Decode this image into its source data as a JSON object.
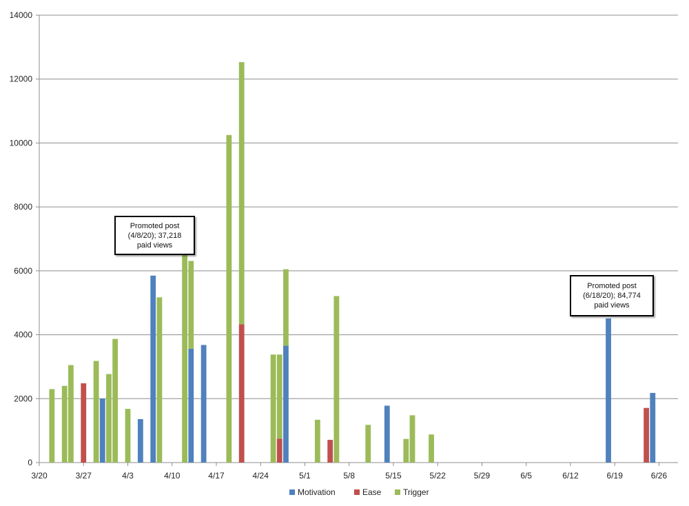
{
  "chart_data": {
    "type": "bar",
    "stacking": "stacked",
    "ylim": [
      0,
      14000
    ],
    "yticks": [
      0,
      2000,
      4000,
      6000,
      8000,
      10000,
      12000,
      14000
    ],
    "x_range": [
      "3/20",
      "6/29"
    ],
    "x_ticks": [
      "3/20",
      "3/27",
      "4/3",
      "4/10",
      "4/17",
      "4/24",
      "5/1",
      "5/8",
      "5/15",
      "5/22",
      "5/29",
      "6/5",
      "6/12",
      "6/19",
      "6/26"
    ],
    "grid": "horizontal",
    "legend_position": "bottom",
    "series": [
      {
        "name": "Motivation",
        "color": "#4F81BD"
      },
      {
        "name": "Ease",
        "color": "#C0504D"
      },
      {
        "name": "Trigger",
        "color": "#9BBB59"
      }
    ],
    "points": [
      {
        "date": "3/22",
        "motivation": 0,
        "ease": 0,
        "trigger": 2300
      },
      {
        "date": "3/24",
        "motivation": 0,
        "ease": 0,
        "trigger": 2400
      },
      {
        "date": "3/25",
        "motivation": 0,
        "ease": 0,
        "trigger": 3050
      },
      {
        "date": "3/27",
        "motivation": 0,
        "ease": 2480,
        "trigger": 0
      },
      {
        "date": "3/29",
        "motivation": 0,
        "ease": 0,
        "trigger": 3180
      },
      {
        "date": "3/30",
        "motivation": 2000,
        "ease": 0,
        "trigger": 0
      },
      {
        "date": "3/31",
        "motivation": 0,
        "ease": 0,
        "trigger": 2770
      },
      {
        "date": "4/1",
        "motivation": 0,
        "ease": 0,
        "trigger": 3870
      },
      {
        "date": "4/3",
        "motivation": 0,
        "ease": 0,
        "trigger": 1680
      },
      {
        "date": "4/5",
        "motivation": 1360,
        "ease": 0,
        "trigger": 0
      },
      {
        "date": "4/7",
        "motivation": 5850,
        "ease": 0,
        "trigger": 0
      },
      {
        "date": "4/8",
        "motivation": 0,
        "ease": 0,
        "trigger": 5170
      },
      {
        "date": "4/12",
        "motivation": 0,
        "ease": 0,
        "trigger": 6570
      },
      {
        "date": "4/13",
        "motivation": 3560,
        "ease": 0,
        "trigger": 2750
      },
      {
        "date": "4/15",
        "motivation": 3680,
        "ease": 0,
        "trigger": 0
      },
      {
        "date": "4/19",
        "motivation": 0,
        "ease": 0,
        "trigger": 10250
      },
      {
        "date": "4/21",
        "motivation": 0,
        "ease": 4330,
        "trigger": 8200
      },
      {
        "date": "4/26",
        "motivation": 0,
        "ease": 0,
        "trigger": 3380
      },
      {
        "date": "4/27",
        "motivation": 0,
        "ease": 750,
        "trigger": 2630
      },
      {
        "date": "4/28",
        "motivation": 3660,
        "ease": 0,
        "trigger": 2390
      },
      {
        "date": "5/3",
        "motivation": 0,
        "ease": 0,
        "trigger": 1340
      },
      {
        "date": "5/5",
        "motivation": 0,
        "ease": 710,
        "trigger": 0
      },
      {
        "date": "5/6",
        "motivation": 0,
        "ease": 0,
        "trigger": 5210
      },
      {
        "date": "5/11",
        "motivation": 0,
        "ease": 0,
        "trigger": 1180
      },
      {
        "date": "5/14",
        "motivation": 1780,
        "ease": 0,
        "trigger": 0
      },
      {
        "date": "5/17",
        "motivation": 0,
        "ease": 0,
        "trigger": 740
      },
      {
        "date": "5/18",
        "motivation": 0,
        "ease": 0,
        "trigger": 1480
      },
      {
        "date": "5/21",
        "motivation": 0,
        "ease": 0,
        "trigger": 880
      },
      {
        "date": "6/18",
        "motivation": 4510,
        "ease": 0,
        "trigger": 0
      },
      {
        "date": "6/24",
        "motivation": 0,
        "ease": 1710,
        "trigger": 0
      },
      {
        "date": "6/25",
        "motivation": 2180,
        "ease": 0,
        "trigger": 0
      }
    ],
    "annotations": [
      {
        "lines": [
          "Promoted post",
          "(4/8/20); 37,218",
          "paid views"
        ]
      },
      {
        "lines": [
          "Promoted post",
          "(6/18/20); 84,774",
          "paid views"
        ]
      }
    ]
  }
}
